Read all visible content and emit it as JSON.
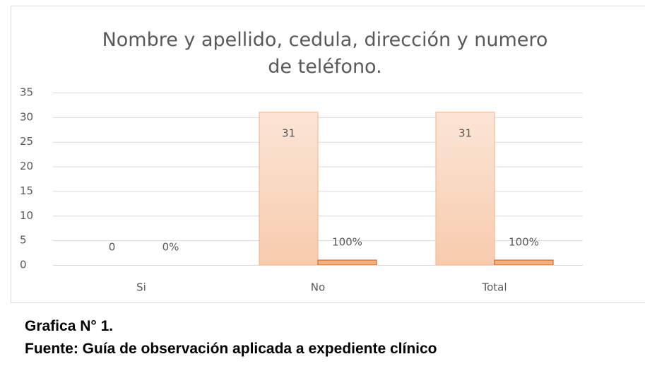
{
  "chart_data": {
    "type": "bar",
    "title": "Nombre y apellido, cedula, dirección y numero de teléfono.",
    "categories": [
      "Si",
      "No",
      "Total"
    ],
    "series": [
      {
        "color": "#f8cbad",
        "values": [
          0,
          31,
          31
        ]
      },
      {
        "color": "#f4b183",
        "values": [
          0,
          1,
          1
        ],
        "value_labels": [
          "0%",
          "100%",
          "100%"
        ]
      }
    ],
    "ylim": [
      0,
      35
    ],
    "yticks": [
      0,
      5,
      10,
      15,
      20,
      25,
      30,
      35
    ],
    "grid": true
  },
  "caption": {
    "figure": "Grafica N° 1.",
    "source": "Fuente: Guía de observación aplicada a expediente clínico"
  }
}
